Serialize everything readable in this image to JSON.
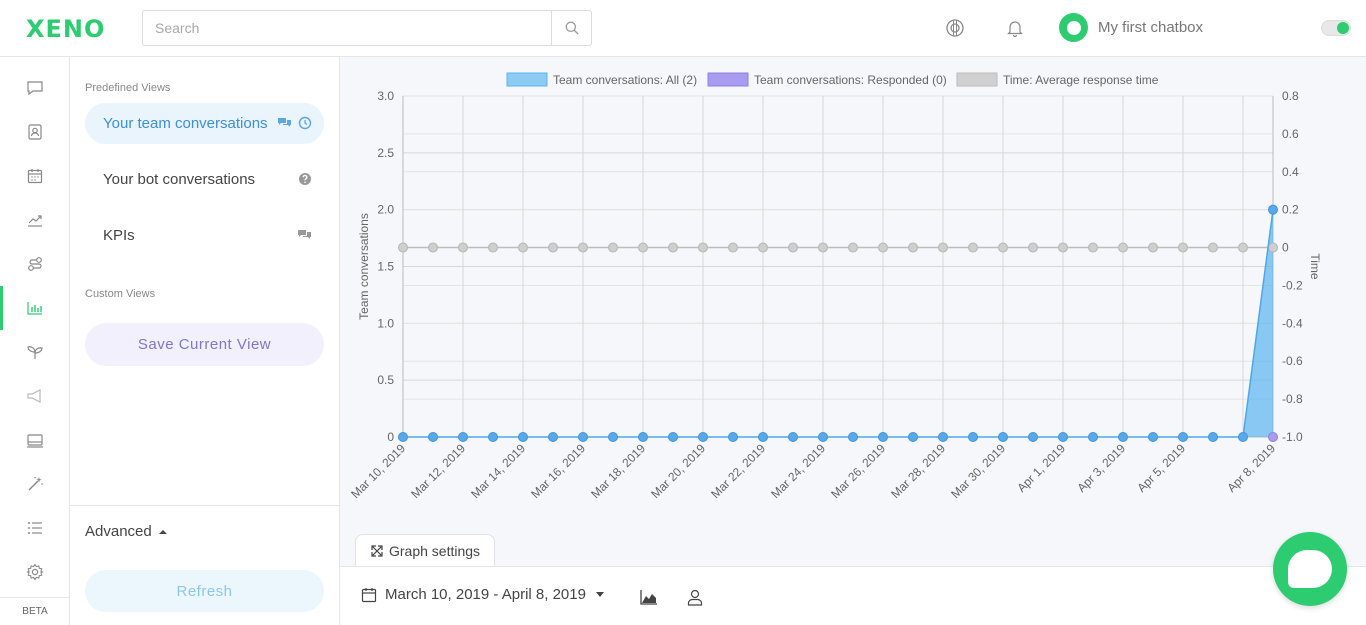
{
  "header": {
    "logo": "XENO",
    "search_placeholder": "Search",
    "chatbox_name": "My first chatbox"
  },
  "rail": {
    "items": [
      "chat-icon",
      "contacts-icon",
      "calendar-icon",
      "trend-icon",
      "journey-icon",
      "reports-icon",
      "growth-icon",
      "megaphone-icon",
      "inbox-icon",
      "magic-wand-icon",
      "list-icon",
      "gear-icon"
    ],
    "beta_label": "BETA"
  },
  "views": {
    "predefined_label": "Predefined Views",
    "items": [
      {
        "label": "Your team conversations",
        "active": true
      },
      {
        "label": "Your bot conversations",
        "active": false
      },
      {
        "label": "KPIs",
        "active": false
      }
    ],
    "custom_label": "Custom Views",
    "save_label": "Save Current View",
    "advanced_label": "Advanced",
    "refresh_label": "Refresh"
  },
  "graph_settings_label": "Graph settings",
  "footer": {
    "date_range": "March 10, 2019 - April 8, 2019"
  },
  "colors": {
    "brand": "#2ecc71",
    "series_all": "#5ab4ee",
    "series_responded": "#a89bf0",
    "series_time": "#c8c8c8"
  },
  "chart_data": {
    "type": "area",
    "x": [
      "Mar 10, 2019",
      "Mar 11, 2019",
      "Mar 12, 2019",
      "Mar 13, 2019",
      "Mar 14, 2019",
      "Mar 15, 2019",
      "Mar 16, 2019",
      "Mar 17, 2019",
      "Mar 18, 2019",
      "Mar 19, 2019",
      "Mar 20, 2019",
      "Mar 21, 2019",
      "Mar 22, 2019",
      "Mar 23, 2019",
      "Mar 24, 2019",
      "Mar 25, 2019",
      "Mar 26, 2019",
      "Mar 27, 2019",
      "Mar 28, 2019",
      "Mar 29, 2019",
      "Mar 30, 2019",
      "Mar 31, 2019",
      "Apr 1, 2019",
      "Apr 2, 2019",
      "Apr 3, 2019",
      "Apr 4, 2019",
      "Apr 5, 2019",
      "Apr 6, 2019",
      "Apr 7, 2019",
      "Apr 8, 2019"
    ],
    "x_tick_labels": [
      "Mar 10, 2019",
      "Mar 12, 2019",
      "Mar 14, 2019",
      "Mar 16, 2019",
      "Mar 18, 2019",
      "Mar 20, 2019",
      "Mar 22, 2019",
      "Mar 24, 2019",
      "Mar 26, 2019",
      "Mar 28, 2019",
      "Mar 30, 2019",
      "Apr 1, 2019",
      "Apr 3, 2019",
      "Apr 5, 2019",
      "Apr 8, 2019"
    ],
    "series": [
      {
        "name": "Team conversations: All (2)",
        "axis": "left",
        "values": [
          0,
          0,
          0,
          0,
          0,
          0,
          0,
          0,
          0,
          0,
          0,
          0,
          0,
          0,
          0,
          0,
          0,
          0,
          0,
          0,
          0,
          0,
          0,
          0,
          0,
          0,
          0,
          0,
          0,
          2
        ]
      },
      {
        "name": "Team conversations: Responded (0)",
        "axis": "left",
        "values": [
          0,
          0,
          0,
          0,
          0,
          0,
          0,
          0,
          0,
          0,
          0,
          0,
          0,
          0,
          0,
          0,
          0,
          0,
          0,
          0,
          0,
          0,
          0,
          0,
          0,
          0,
          0,
          0,
          0,
          0
        ]
      },
      {
        "name": "Time: Average response time",
        "axis": "right",
        "values": [
          0,
          0,
          0,
          0,
          0,
          0,
          0,
          0,
          0,
          0,
          0,
          0,
          0,
          0,
          0,
          0,
          0,
          0,
          0,
          0,
          0,
          0,
          0,
          0,
          0,
          0,
          0,
          0,
          0,
          0
        ]
      }
    ],
    "ylabel": "Team conversations",
    "y2label": "Time",
    "ylim": [
      0,
      3
    ],
    "y_ticks": [
      "0",
      "0.5",
      "1.0",
      "1.5",
      "2.0",
      "2.5",
      "3.0"
    ],
    "y2lim": [
      -1,
      0.8
    ],
    "y2_ticks": [
      "-1.0",
      "-0.8",
      "-0.6",
      "-0.4",
      "-0.2",
      "0",
      "0.2",
      "0.4",
      "0.6",
      "0.8"
    ],
    "grid": true,
    "legend": "top-center"
  }
}
